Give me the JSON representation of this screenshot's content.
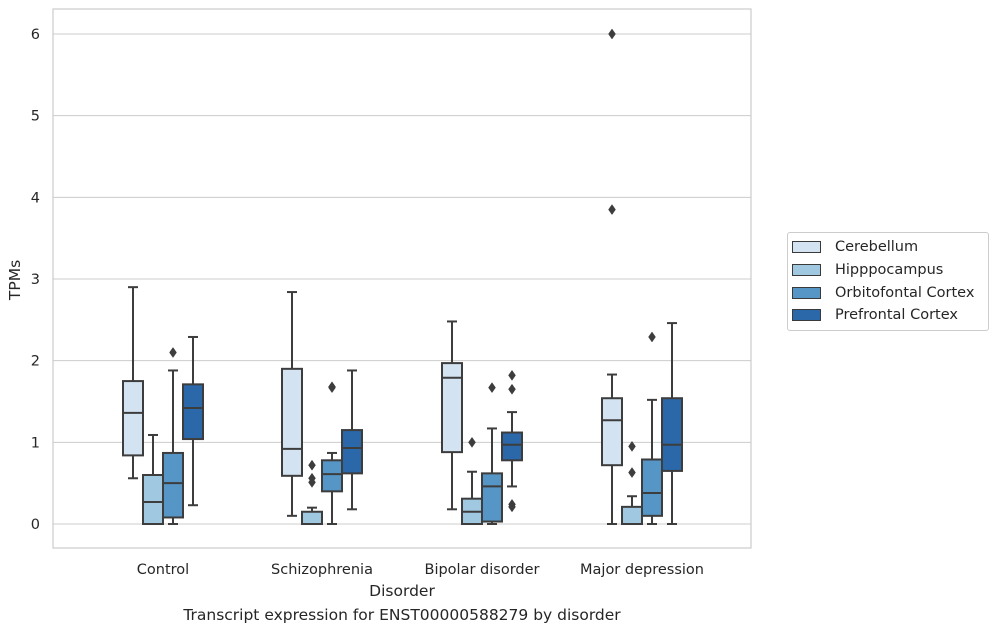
{
  "chart_data": {
    "type": "box",
    "title": "",
    "caption": "Transcript expression for ENST00000588279 by disorder",
    "xlabel": "Disorder",
    "ylabel": "TPMs",
    "ylim": [
      -0.3,
      6.3
    ],
    "yticks": [
      "0",
      "1",
      "2",
      "3",
      "4",
      "5",
      "6"
    ],
    "grid": "horizontal",
    "legend_position": "right",
    "categories": [
      "Control",
      "Schizophrenia",
      "Bipolar disorder",
      "Major depression"
    ],
    "series": [
      {
        "name": "Cerebellum",
        "color": "#d3e3f2",
        "boxes": [
          {
            "whisker_low": 0.56,
            "q1": 0.84,
            "median": 1.36,
            "q3": 1.75,
            "whisker_high": 2.9,
            "outliers": []
          },
          {
            "whisker_low": 0.1,
            "q1": 0.59,
            "median": 0.92,
            "q3": 1.9,
            "whisker_high": 2.84,
            "outliers": []
          },
          {
            "whisker_low": 0.18,
            "q1": 0.88,
            "median": 1.79,
            "q3": 1.97,
            "whisker_high": 2.48,
            "outliers": []
          },
          {
            "whisker_low": 0.0,
            "q1": 0.72,
            "median": 1.27,
            "q3": 1.54,
            "whisker_high": 1.83,
            "outliers": [
              6.0,
              3.85
            ]
          }
        ]
      },
      {
        "name": "Hipppocampus",
        "color": "#a0c8e0",
        "boxes": [
          {
            "whisker_low": 0.0,
            "q1": 0.0,
            "median": 0.27,
            "q3": 0.6,
            "whisker_high": 1.09,
            "outliers": []
          },
          {
            "whisker_low": 0.0,
            "q1": 0.0,
            "median": 0.0,
            "q3": 0.15,
            "whisker_high": 0.2,
            "outliers": [
              0.72,
              0.56,
              0.51
            ]
          },
          {
            "whisker_low": 0.0,
            "q1": 0.0,
            "median": 0.15,
            "q3": 0.31,
            "whisker_high": 0.64,
            "outliers": [
              1.0
            ]
          },
          {
            "whisker_low": 0.0,
            "q1": 0.0,
            "median": 0.0,
            "q3": 0.21,
            "whisker_high": 0.34,
            "outliers": [
              0.95,
              0.63
            ]
          }
        ]
      },
      {
        "name": "Orbitofontal Cortex",
        "color": "#5596c6",
        "boxes": [
          {
            "whisker_low": 0.0,
            "q1": 0.08,
            "median": 0.5,
            "q3": 0.87,
            "whisker_high": 1.88,
            "outliers": [
              2.1
            ]
          },
          {
            "whisker_low": 0.0,
            "q1": 0.4,
            "median": 0.61,
            "q3": 0.78,
            "whisker_high": 0.87,
            "outliers": [
              1.68,
              1.67
            ]
          },
          {
            "whisker_low": 0.0,
            "q1": 0.03,
            "median": 0.46,
            "q3": 0.62,
            "whisker_high": 1.17,
            "outliers": [
              1.67
            ]
          },
          {
            "whisker_low": 0.0,
            "q1": 0.1,
            "median": 0.38,
            "q3": 0.79,
            "whisker_high": 1.52,
            "outliers": [
              2.29
            ]
          }
        ]
      },
      {
        "name": "Prefrontal Cortex",
        "color": "#2a68aa",
        "boxes": [
          {
            "whisker_low": 0.23,
            "q1": 1.04,
            "median": 1.42,
            "q3": 1.71,
            "whisker_high": 2.29,
            "outliers": []
          },
          {
            "whisker_low": 0.18,
            "q1": 0.62,
            "median": 0.93,
            "q3": 1.15,
            "whisker_high": 1.88,
            "outliers": []
          },
          {
            "whisker_low": 0.46,
            "q1": 0.78,
            "median": 0.97,
            "q3": 1.12,
            "whisker_high": 1.37,
            "outliers": [
              1.82,
              1.65,
              0.24,
              0.21
            ]
          },
          {
            "whisker_low": 0.0,
            "q1": 0.65,
            "median": 0.97,
            "q3": 1.54,
            "whisker_high": 2.46,
            "outliers": []
          }
        ]
      }
    ]
  }
}
